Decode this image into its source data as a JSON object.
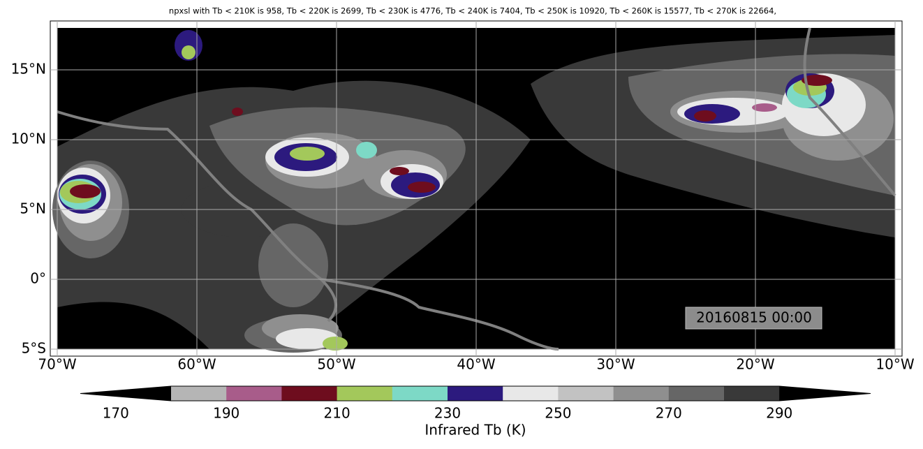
{
  "title": "npxsl with Tb < 210K is 958,  Tb < 220K is 2699,  Tb < 230K is 4776,  Tb < 240K is 7404,  Tb < 250K is 10920,  Tb < 260K is 15577,  Tb < 270K is 22664,",
  "map": {
    "lon_ticks": [
      "70°W",
      "60°W",
      "50°W",
      "40°W",
      "30°W",
      "20°W",
      "10°W"
    ],
    "lat_ticks": [
      "15°N",
      "10°N",
      "5°N",
      "0°",
      "5°S"
    ],
    "timestamp": "20160815 00:00"
  },
  "colorbar": {
    "ticks": [
      "170",
      "190",
      "210",
      "230",
      "250",
      "270",
      "290"
    ],
    "label": "Infrared Tb (K)",
    "colors": [
      "#000000",
      "#b5b5b5",
      "#a85c8a",
      "#6e0d1e",
      "#a3c85b",
      "#7dd9c6",
      "#2c1a7e",
      "#e8e8e8",
      "#c2c2c2",
      "#8f8f8f",
      "#666666",
      "#393939",
      "#000000"
    ]
  }
}
